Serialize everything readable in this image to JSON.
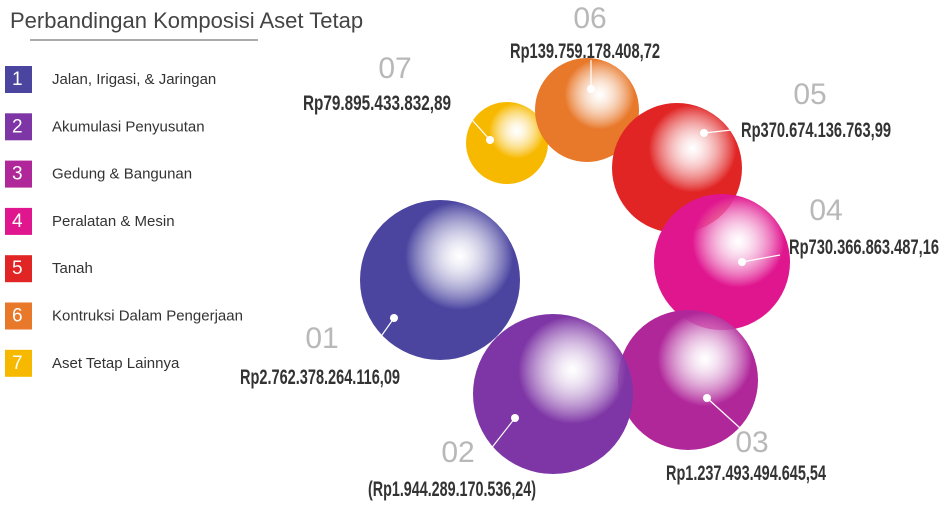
{
  "title": "Perbandingan Komposisi Aset Tetap",
  "legend": [
    {
      "number": "1",
      "label": "Jalan, Irigasi, & Jaringan"
    },
    {
      "number": "2",
      "label": "Akumulasi Penyusutan"
    },
    {
      "number": "3",
      "label": "Gedung & Bangunan"
    },
    {
      "number": "4",
      "label": "Peralatan & Mesin"
    },
    {
      "number": "5",
      "label": "Tanah"
    },
    {
      "number": "6",
      "label": "Kontruksi Dalam Pengerjaan"
    },
    {
      "number": "7",
      "label": "Aset Tetap Lainnya"
    }
  ],
  "bubbles": [
    {
      "index": "01",
      "value": "Rp2.762.378.264.116,09"
    },
    {
      "index": "02",
      "value": "(Rp1.944.289.170.536,24)"
    },
    {
      "index": "03",
      "value": "Rp1.237.493.494.645,54"
    },
    {
      "index": "04",
      "value": "Rp730.366.863.487,16"
    },
    {
      "index": "05",
      "value": "Rp370.674.136.763,99"
    },
    {
      "index": "06",
      "value": "Rp139.759.178.408,72"
    },
    {
      "index": "07",
      "value": "Rp79.895.433.832,89"
    }
  ]
}
